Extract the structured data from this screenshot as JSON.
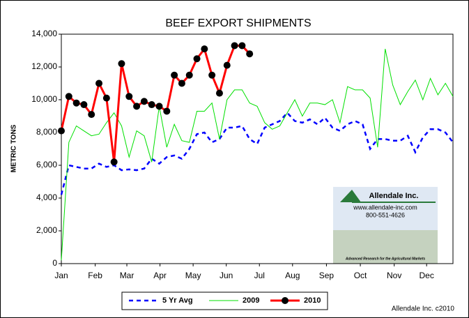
{
  "chart_data": {
    "type": "line",
    "title": "BEEF EXPORT SHIPMENTS",
    "ylabel": "METRIC TONS",
    "x": [
      0,
      1,
      2,
      3,
      4,
      5,
      6,
      7,
      8,
      9,
      10,
      11,
      12,
      13,
      14,
      15,
      16,
      17,
      18,
      19,
      20,
      21,
      22,
      23,
      24,
      25,
      26,
      27,
      28,
      29,
      30,
      31,
      32,
      33,
      34,
      35,
      36,
      37,
      38,
      39,
      40,
      41,
      42,
      43,
      44,
      45,
      46,
      47,
      48,
      49,
      50,
      51,
      52
    ],
    "xlim": [
      0,
      52
    ],
    "xticks": [
      {
        "value": 0,
        "label": "Jan"
      },
      {
        "value": 4.5,
        "label": "Feb"
      },
      {
        "value": 8.7,
        "label": "Mar"
      },
      {
        "value": 13.1,
        "label": "Apr"
      },
      {
        "value": 17.5,
        "label": "May"
      },
      {
        "value": 21.9,
        "label": "Jun"
      },
      {
        "value": 26.3,
        "label": "Jul"
      },
      {
        "value": 30.7,
        "label": "Aug"
      },
      {
        "value": 35.2,
        "label": "Sep"
      },
      {
        "value": 39.7,
        "label": "Oct"
      },
      {
        "value": 44.2,
        "label": "Nov"
      },
      {
        "value": 48.5,
        "label": "Dec"
      }
    ],
    "ylim": [
      0,
      14000
    ],
    "yticks": [
      0,
      {
        "value": 2000,
        "label": "2,000"
      },
      {
        "value": 4000,
        "label": "4,000"
      },
      {
        "value": 6000,
        "label": "6,000"
      },
      {
        "value": 8000,
        "label": "8,000"
      },
      {
        "value": 10000,
        "label": "10,000"
      },
      {
        "value": 12000,
        "label": "12,000"
      },
      {
        "value": 14000,
        "label": "14,000"
      }
    ],
    "series": [
      {
        "name": "5 Yr Avg",
        "color": "#0000ff",
        "style": "dashed",
        "values": [
          4200,
          6000,
          5900,
          5800,
          5800,
          6100,
          5900,
          6000,
          5700,
          5750,
          5700,
          5800,
          6400,
          6100,
          6500,
          6600,
          6400,
          7000,
          7900,
          8000,
          7400,
          7600,
          8300,
          8300,
          8400,
          7600,
          7300,
          8300,
          8500,
          8700,
          9200,
          8700,
          8600,
          8800,
          8500,
          8900,
          8300,
          8100,
          8500,
          8700,
          8500,
          7000,
          7600,
          7600,
          7500,
          7500,
          7800,
          6800,
          7700,
          8200,
          8200,
          8000,
          7400
        ]
      },
      {
        "name": "2009",
        "color": "#00e000",
        "style": "solid",
        "values": [
          200,
          7400,
          8400,
          8100,
          7800,
          7900,
          8600,
          9200,
          8400,
          6500,
          8100,
          7800,
          6200,
          9600,
          7100,
          8500,
          7500,
          7400,
          9300,
          9300,
          9800,
          7600,
          10000,
          10600,
          10600,
          9800,
          9600,
          8600,
          8200,
          8400,
          9200,
          10000,
          9000,
          9800,
          9800,
          9700,
          10000,
          8600,
          10800,
          10600,
          10600,
          10100,
          7100,
          13100,
          10900,
          9700,
          10500,
          11200,
          10000,
          11300,
          10300,
          11000,
          10200
        ]
      },
      {
        "name": "2010",
        "color": "#ff0000",
        "style": "markers",
        "values": [
          8100,
          10200,
          9800,
          9700,
          9100,
          11000,
          10100,
          6200,
          12200,
          10200,
          9600,
          9900,
          9700,
          9600,
          9300,
          11500,
          11000,
          11500,
          12500,
          13100,
          11500,
          10400,
          12100,
          13300,
          13300,
          12800,
          null,
          null,
          null,
          null,
          null,
          null,
          null,
          null,
          null,
          null,
          null,
          null,
          null,
          null,
          null,
          null,
          null,
          null,
          null,
          null,
          null,
          null,
          null,
          null,
          null,
          null,
          null
        ]
      }
    ]
  },
  "logo": {
    "name": "Allendale Inc.",
    "url": "www.allendale-inc.com",
    "phone": "800-551-4626",
    "tagline": "Advanced Research for the Agricultural Markets"
  },
  "credit": "Allendale Inc. c2010"
}
